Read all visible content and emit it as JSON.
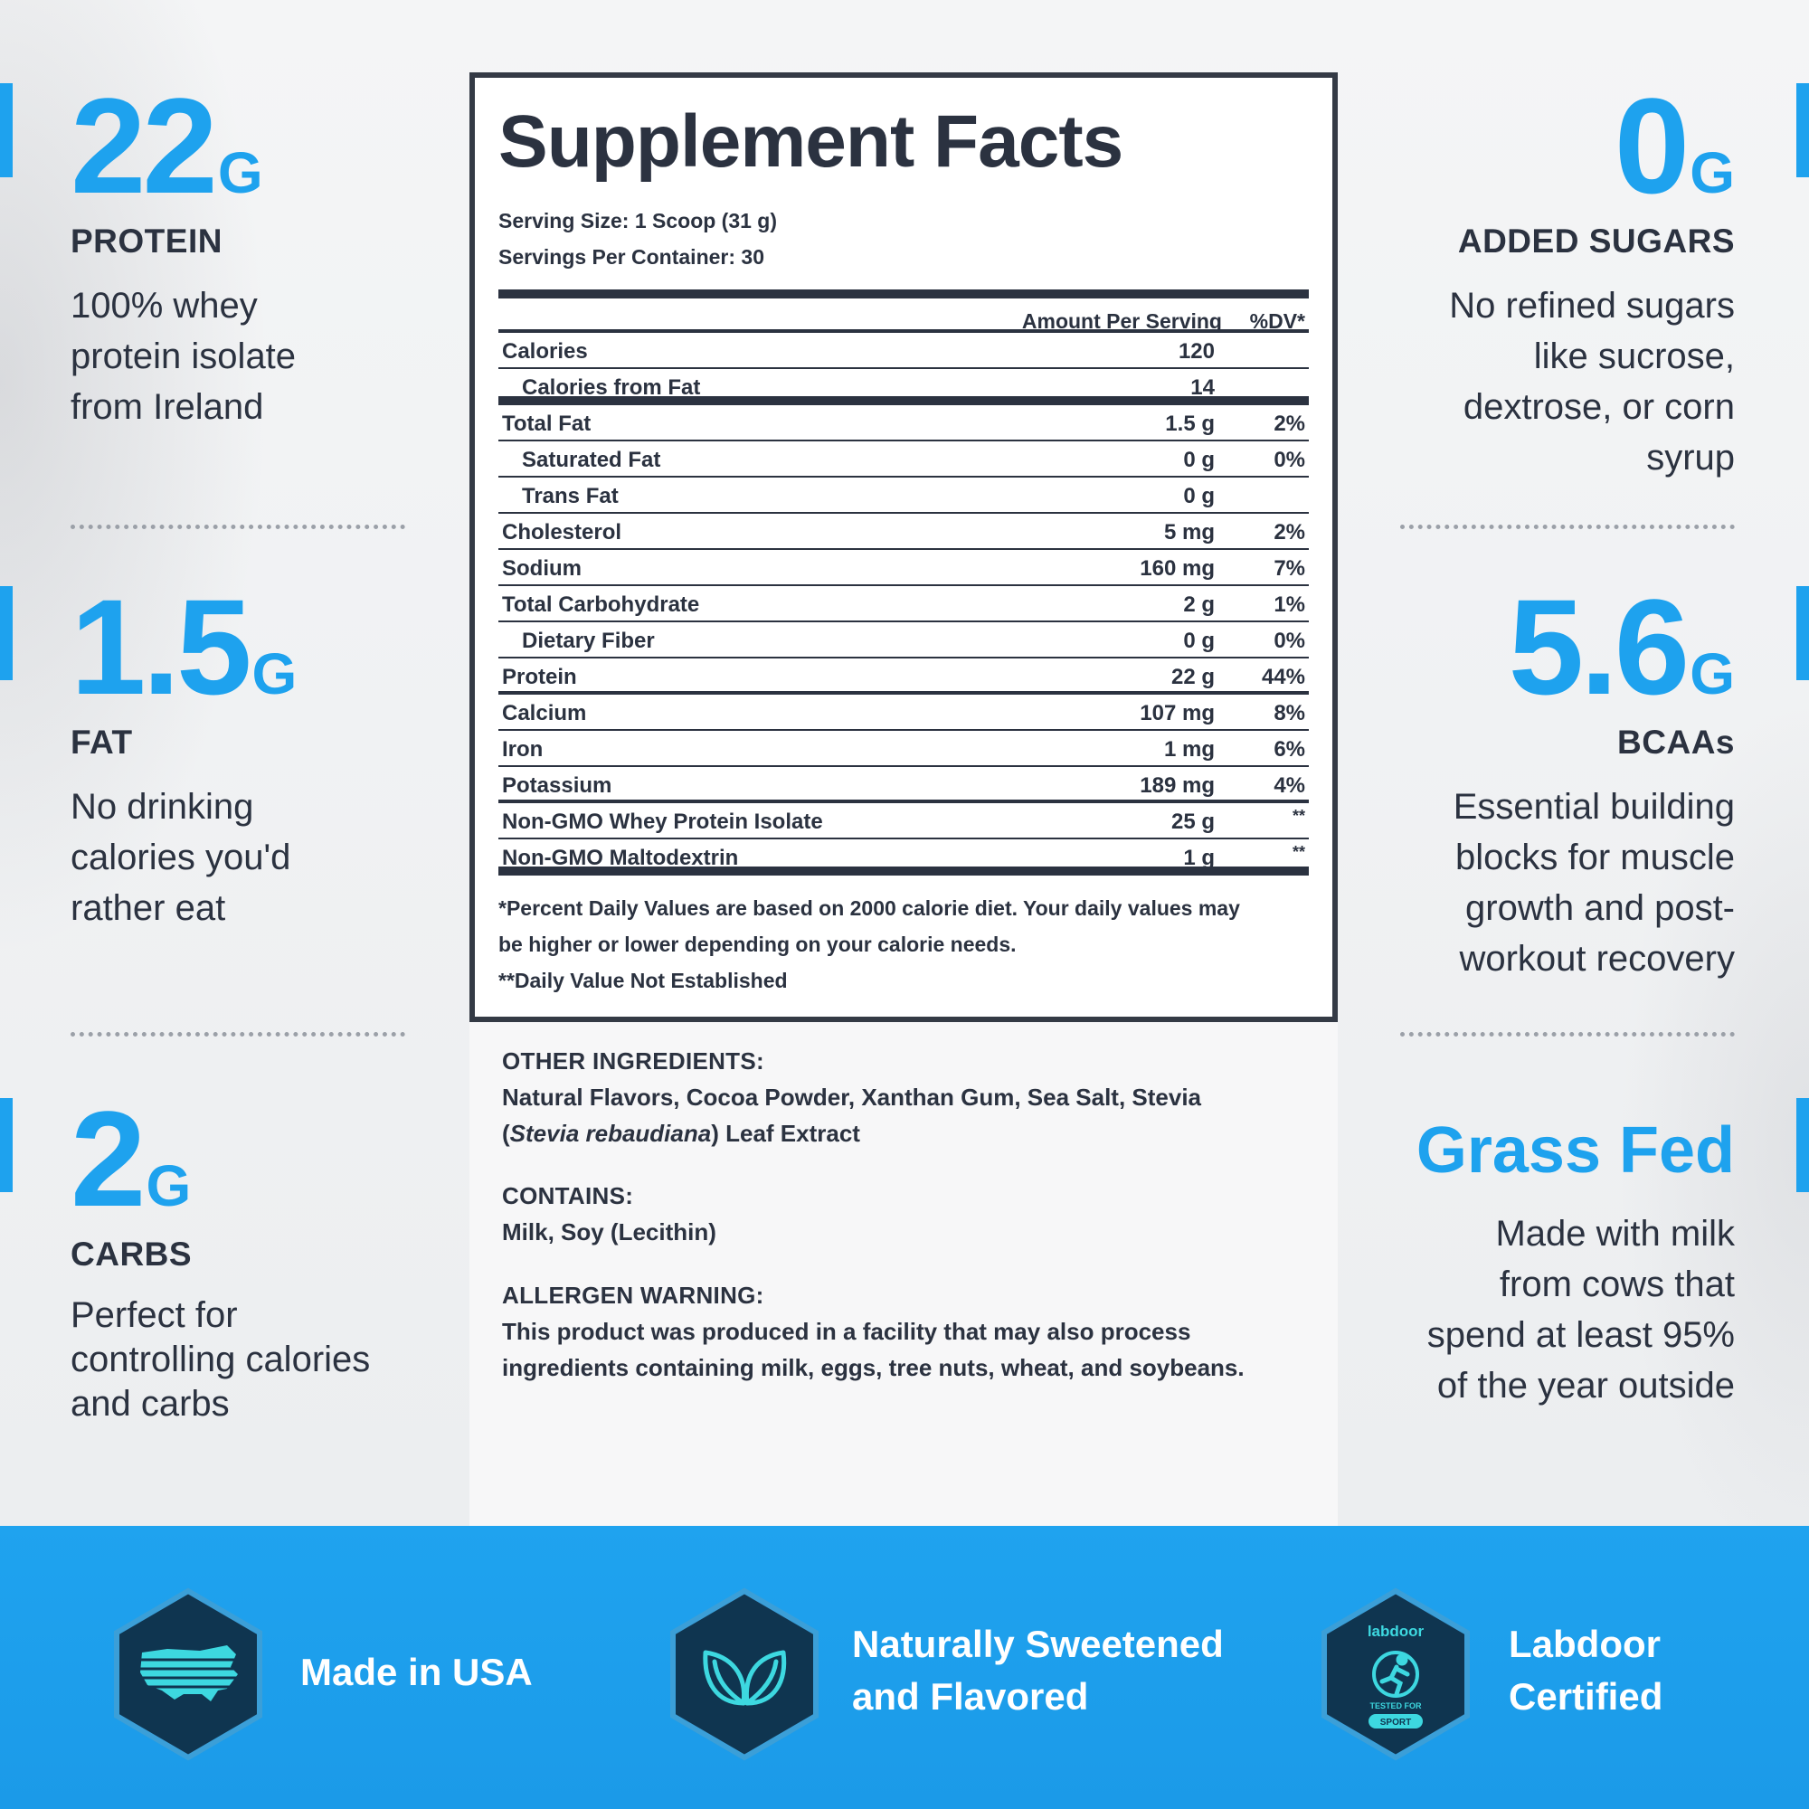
{
  "stats": {
    "protein": {
      "value": "22",
      "unit": "G",
      "label": "PROTEIN",
      "lines": [
        "100% whey",
        "protein isolate",
        "from Ireland"
      ]
    },
    "fat": {
      "value": "1.5",
      "unit": "G",
      "label": "FAT",
      "lines": [
        "No drinking",
        "calories you'd",
        "rather eat"
      ]
    },
    "carbs": {
      "value": "2",
      "unit": "G",
      "label": "CARBS",
      "lines": [
        "Perfect for",
        "controlling calories",
        "and carbs"
      ]
    },
    "sugars": {
      "value": "0",
      "unit": "G",
      "label": "ADDED SUGARS",
      "lines": [
        "No refined sugars",
        "like sucrose,",
        "dextrose, or corn",
        "syrup"
      ]
    },
    "bcaas": {
      "value": "5.6",
      "unit": "G",
      "label": "BCAAs",
      "lines": [
        "Essential building",
        "blocks for muscle",
        "growth and post-",
        "workout recovery"
      ]
    },
    "grass": {
      "title": "Grass Fed",
      "lines": [
        "Made with milk",
        "from cows that",
        "spend at least 95%",
        "of the year outside"
      ]
    }
  },
  "facts": {
    "title": "Supplement Facts",
    "serving_size": "Serving Size: 1 Scoop (31 g)",
    "servings_per_container": "Servings Per Container: 30",
    "header_amount": "Amount Per Serving",
    "header_dv": "%DV*",
    "rows": [
      {
        "name": "Calories",
        "amount": "120",
        "dv": ""
      },
      {
        "name": "Calories from Fat",
        "amount": "14",
        "dv": ""
      },
      {
        "name": "Total Fat",
        "amount": "1.5 g",
        "dv": "2%"
      },
      {
        "name": "Saturated Fat",
        "amount": "0 g",
        "dv": "0%"
      },
      {
        "name": "Trans Fat",
        "amount": "0 g",
        "dv": ""
      },
      {
        "name": "Cholesterol",
        "amount": "5 mg",
        "dv": "2%"
      },
      {
        "name": "Sodium",
        "amount": "160 mg",
        "dv": "7%"
      },
      {
        "name": "Total Carbohydrate",
        "amount": "2 g",
        "dv": "1%"
      },
      {
        "name": "Dietary Fiber",
        "amount": "0 g",
        "dv": "0%"
      },
      {
        "name": "Protein",
        "amount": "22 g",
        "dv": "44%"
      },
      {
        "name": "Calcium",
        "amount": "107 mg",
        "dv": "8%"
      },
      {
        "name": "Iron",
        "amount": "1 mg",
        "dv": "6%"
      },
      {
        "name": "Potassium",
        "amount": "189 mg",
        "dv": "4%"
      },
      {
        "name": "Non-GMO Whey Protein Isolate",
        "amount": "25 g",
        "dv": "**"
      },
      {
        "name": "Non-GMO Maltodextrin",
        "amount": "1 g",
        "dv": "**"
      }
    ],
    "footnote1": "*Percent Daily Values are based on 2000 calorie diet. Your daily values may",
    "footnote2": "be higher or lower depending on your calorie needs.",
    "footnote3": "**Daily Value Not Established"
  },
  "ingredients": {
    "other_heading": "OTHER INGREDIENTS:",
    "other_text1": "Natural Flavors, Cocoa Powder, Xanthan Gum, Sea Salt, Stevia",
    "other_paren_open": "(",
    "other_italic": "Stevia rebaudiana",
    "other_text2": ") Leaf Extract",
    "contains_heading": "CONTAINS:",
    "contains_text": "Milk, Soy (Lecithin)",
    "allergen_heading": "ALLERGEN WARNING:",
    "allergen_text1": "This product was produced in a facility that may also process",
    "allergen_text2": "ingredients containing milk, eggs, tree nuts, wheat, and soybeans."
  },
  "badges": {
    "usa": {
      "label": "Made in USA",
      "icon": "usa-flag-map-icon"
    },
    "sweet": {
      "line1": "Naturally Sweetened",
      "line2": "and Flavored",
      "icon": "leaves-icon"
    },
    "labdoor": {
      "line1": "Labdoor",
      "line2": "Certified",
      "icon": "labdoor-badge-icon",
      "badge_brand": "labdoor",
      "badge_tested": "TESTED FOR",
      "badge_sport": "SPORT"
    }
  },
  "colors": {
    "accent": "#1ea2ee",
    "text": "#2b3240",
    "hex_dark": "#0f3550",
    "icon_teal": "#3dd8e0",
    "band": "#1fa3ef"
  }
}
